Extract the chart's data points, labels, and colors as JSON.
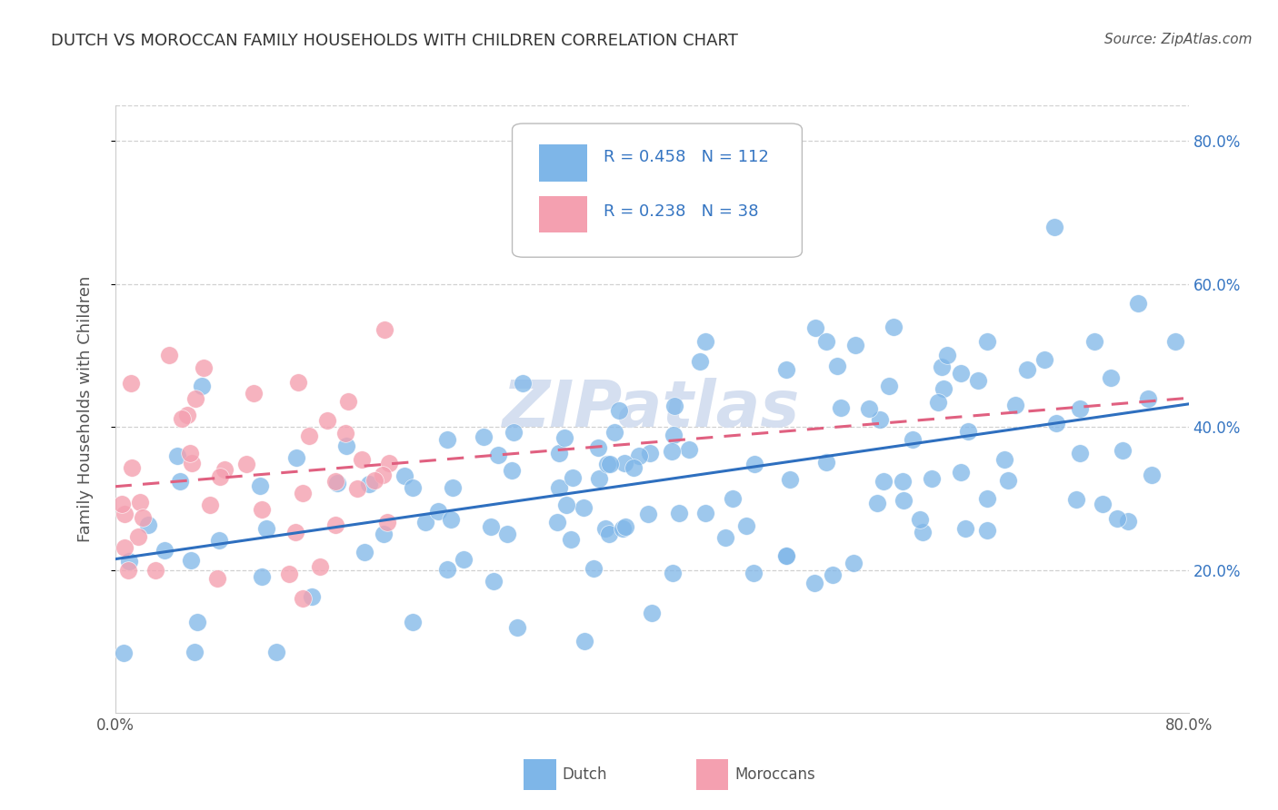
{
  "title": "DUTCH VS MOROCCAN FAMILY HOUSEHOLDS WITH CHILDREN CORRELATION CHART",
  "source": "Source: ZipAtlas.com",
  "ylabel": "Family Households with Children",
  "xlim": [
    0.0,
    0.8
  ],
  "ylim": [
    0.0,
    0.85
  ],
  "ytick_positions": [
    0.2,
    0.4,
    0.6,
    0.8
  ],
  "ytick_labels": [
    "20.0%",
    "40.0%",
    "60.0%",
    "80.0%"
  ],
  "xtick_positions": [
    0.0,
    0.8
  ],
  "xtick_labels": [
    "0.0%",
    "80.0%"
  ],
  "dutch_R": 0.458,
  "dutch_N": 112,
  "moroccan_R": 0.238,
  "moroccan_N": 38,
  "dutch_color": "#7EB6E8",
  "moroccan_color": "#F4A0B0",
  "dutch_line_color": "#2E6FBF",
  "moroccan_line_color": "#E06080",
  "background_color": "#FFFFFF",
  "grid_color": "#CCCCCC",
  "title_color": "#333333",
  "watermark": "ZIPatlas",
  "watermark_color": "#D5DFF0",
  "legend_box_color": "#CCCCCC",
  "ylabel_color": "#555555",
  "ytick_color": "#3575C2",
  "xtick_color": "#555555",
  "source_color": "#555555",
  "bottom_legend_dutch": "Dutch",
  "bottom_legend_moroccan": "Moroccans"
}
